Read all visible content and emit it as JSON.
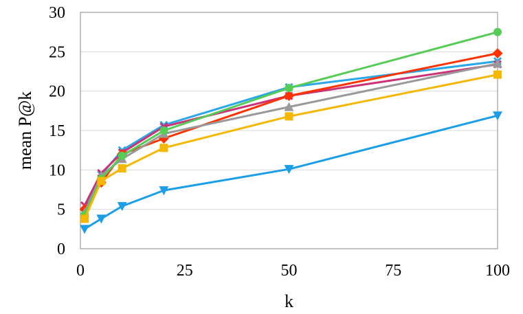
{
  "chart_data": {
    "type": "line",
    "title": "",
    "xlabel": "k",
    "ylabel": "mean P@k",
    "xlim": [
      0,
      100
    ],
    "ylim": [
      0,
      30
    ],
    "xticks": [
      0,
      25,
      50,
      75,
      100
    ],
    "yticks": [
      0,
      5,
      10,
      15,
      20,
      25,
      30
    ],
    "grid": "horizontal",
    "legend": "none",
    "x": [
      1,
      5,
      10,
      20,
      50,
      100
    ],
    "series": [
      {
        "color": "#2aa7e8",
        "marker": "x",
        "values": [
          4.8,
          9.4,
          12.5,
          15.7,
          20.5,
          23.8
        ]
      },
      {
        "color": "#cc3377",
        "marker": "x",
        "values": [
          5.5,
          9.6,
          12.2,
          15.5,
          19.4,
          23.4
        ]
      },
      {
        "color": "#ff3300",
        "marker": "diamond",
        "values": [
          5.0,
          8.4,
          12.0,
          14.0,
          19.4,
          24.8
        ]
      },
      {
        "color": "#999999",
        "marker": "triangle-up",
        "values": [
          4.6,
          9.3,
          11.4,
          14.6,
          18.0,
          23.5
        ]
      },
      {
        "color": "#55cc55",
        "marker": "circle",
        "values": [
          4.3,
          8.9,
          11.8,
          15.0,
          20.4,
          27.5
        ]
      },
      {
        "color": "#f5b800",
        "marker": "square",
        "values": [
          3.8,
          8.6,
          10.2,
          12.8,
          16.8,
          22.1
        ]
      },
      {
        "color": "#1a9ee8",
        "marker": "triangle-down",
        "values": [
          2.5,
          3.8,
          5.4,
          7.4,
          10.1,
          16.9
        ]
      }
    ]
  }
}
